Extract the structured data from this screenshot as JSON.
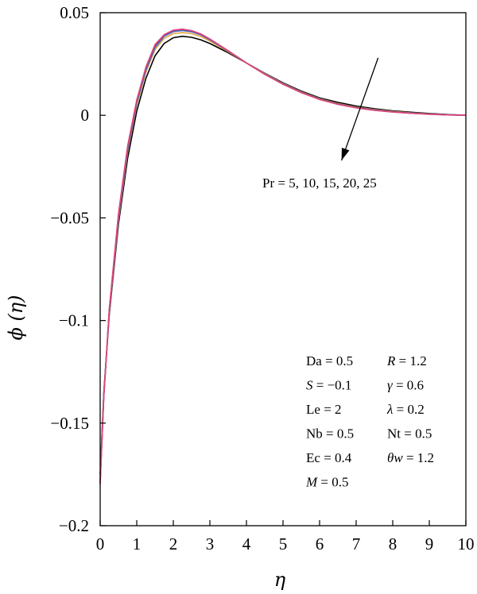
{
  "chart_data": {
    "type": "line",
    "title": "",
    "xlabel": "η",
    "ylabel": "ϕ (η)",
    "xlim": [
      0,
      10
    ],
    "ylim": [
      -0.2,
      0.05
    ],
    "xticks": [
      0,
      1,
      2,
      3,
      4,
      5,
      6,
      7,
      8,
      9,
      10
    ],
    "xtick_labels": [
      "0",
      "1",
      "2",
      "3",
      "4",
      "5",
      "6",
      "7",
      "8",
      "9",
      "10"
    ],
    "yticks": [
      0.05,
      0,
      -0.05,
      -0.1,
      -0.15,
      -0.2
    ],
    "ytick_labels": [
      "0.05",
      "0",
      "−0.05",
      "−0.1",
      "−0.15",
      "−0.2"
    ],
    "grid": false,
    "legend": "none",
    "series": [
      {
        "color": "#000000",
        "x": [
          0,
          0.1,
          0.25,
          0.5,
          0.75,
          1.0,
          1.25,
          1.5,
          1.75,
          2.0,
          2.25,
          2.5,
          2.75,
          3.0,
          3.5,
          4.0,
          4.5,
          5.0,
          5.5,
          6.0,
          6.5,
          7.0,
          7.5,
          8.0,
          8.5,
          9.0,
          9.5,
          10.0
        ],
        "y": [
          -0.175,
          -0.135,
          -0.097,
          -0.053,
          -0.021,
          0.002,
          0.018,
          0.029,
          0.035,
          0.0378,
          0.0385,
          0.038,
          0.0368,
          0.035,
          0.0305,
          0.0255,
          0.0205,
          0.0158,
          0.0118,
          0.0085,
          0.0063,
          0.0045,
          0.0032,
          0.0022,
          0.0015,
          0.0009,
          0.0004,
          0
        ]
      },
      {
        "color": "#e8a33c",
        "x": [
          0,
          0.1,
          0.25,
          0.5,
          0.75,
          1.0,
          1.25,
          1.5,
          1.75,
          2.0,
          2.25,
          2.5,
          2.75,
          3.0,
          3.5,
          4.0,
          4.5,
          5.0,
          5.5,
          6.0,
          6.5,
          7.0,
          7.5,
          8.0,
          8.5,
          9.0,
          9.5,
          10.0
        ],
        "y": [
          -0.177,
          -0.136,
          -0.096,
          -0.051,
          -0.018,
          0.005,
          0.021,
          0.032,
          0.0375,
          0.0398,
          0.0403,
          0.0398,
          0.0384,
          0.0362,
          0.031,
          0.0255,
          0.0203,
          0.0155,
          0.0114,
          0.0081,
          0.0057,
          0.004,
          0.0028,
          0.0019,
          0.0012,
          0.0007,
          0.0003,
          0
        ]
      },
      {
        "color": "#3b6fc0",
        "x": [
          0,
          0.1,
          0.25,
          0.5,
          0.75,
          1.0,
          1.25,
          1.5,
          1.75,
          2.0,
          2.25,
          2.5,
          2.75,
          3.0,
          3.5,
          4.0,
          4.5,
          5.0,
          5.5,
          6.0,
          6.5,
          7.0,
          7.5,
          8.0,
          8.5,
          9.0,
          9.5,
          10.0
        ],
        "y": [
          -0.178,
          -0.136,
          -0.095,
          -0.05,
          -0.017,
          0.006,
          0.022,
          0.033,
          0.0385,
          0.0408,
          0.0413,
          0.0407,
          0.0392,
          0.0368,
          0.0313,
          0.0255,
          0.0201,
          0.0153,
          0.0112,
          0.0079,
          0.0055,
          0.0038,
          0.0026,
          0.0017,
          0.0011,
          0.0006,
          0.0003,
          0
        ]
      },
      {
        "color": "#7a3fa0",
        "x": [
          0,
          0.1,
          0.25,
          0.5,
          0.75,
          1.0,
          1.25,
          1.5,
          1.75,
          2.0,
          2.25,
          2.5,
          2.75,
          3.0,
          3.5,
          4.0,
          4.5,
          5.0,
          5.5,
          6.0,
          6.5,
          7.0,
          7.5,
          8.0,
          8.5,
          9.0,
          9.5,
          10.0
        ],
        "y": [
          -0.179,
          -0.137,
          -0.095,
          -0.049,
          -0.016,
          0.007,
          0.023,
          0.034,
          0.039,
          0.0413,
          0.0418,
          0.0411,
          0.0395,
          0.0371,
          0.0314,
          0.0255,
          0.02,
          0.0152,
          0.0111,
          0.0078,
          0.0054,
          0.0037,
          0.0025,
          0.0016,
          0.001,
          0.0006,
          0.0002,
          0
        ]
      },
      {
        "color": "#e0457b",
        "x": [
          0,
          0.1,
          0.25,
          0.5,
          0.75,
          1.0,
          1.25,
          1.5,
          1.75,
          2.0,
          2.25,
          2.5,
          2.75,
          3.0,
          3.5,
          4.0,
          4.5,
          5.0,
          5.5,
          6.0,
          6.5,
          7.0,
          7.5,
          8.0,
          8.5,
          9.0,
          9.5,
          10.0
        ],
        "y": [
          -0.18,
          -0.137,
          -0.094,
          -0.048,
          -0.015,
          0.0075,
          0.0235,
          0.0345,
          0.0393,
          0.0415,
          0.042,
          0.0413,
          0.0397,
          0.0372,
          0.0315,
          0.0255,
          0.02,
          0.0151,
          0.011,
          0.0077,
          0.0053,
          0.0036,
          0.0024,
          0.0016,
          0.001,
          0.0005,
          0.0002,
          0
        ]
      }
    ],
    "annotation": {
      "text": "Pr = 5, 10, 15, 20, 25",
      "arrow_from": [
        7.6,
        0.028
      ],
      "arrow_to": [
        6.6,
        -0.022
      ]
    },
    "parameters": [
      {
        "left": "Da = 0.5",
        "right": "R = 1.2"
      },
      {
        "left": "S = −0.1",
        "right": "γ = 0.6"
      },
      {
        "left": "Le = 2",
        "right": "λ = 0.2"
      },
      {
        "left": "Nb = 0.5",
        "right": "Nt = 0.5"
      },
      {
        "left": "Ec = 0.4",
        "right": "θw = 1.2"
      },
      {
        "left": "M = 0.5",
        "right": ""
      }
    ]
  }
}
